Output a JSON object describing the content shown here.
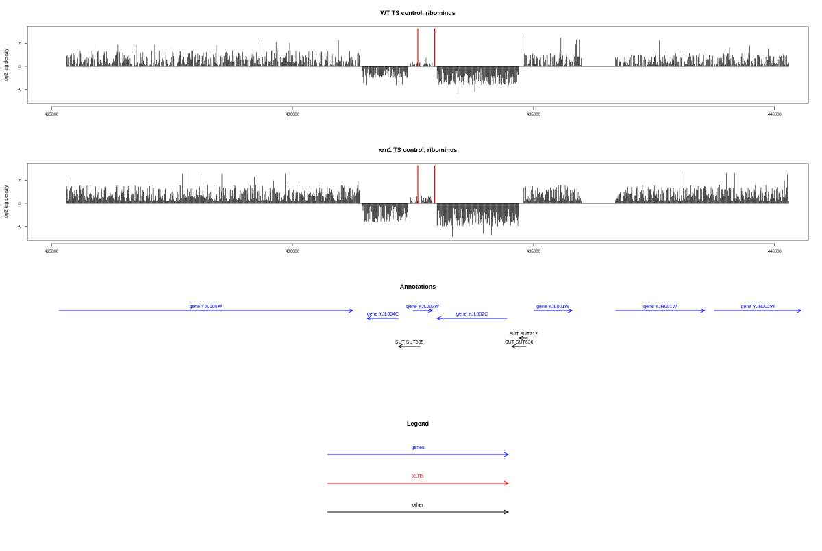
{
  "chart_data": [
    {
      "type": "bar",
      "title": "WT TS control, ribominus",
      "xlabel": "",
      "ylabel": "log2 tag density",
      "xlim": [
        424500,
        440700
      ],
      "ylim": [
        -8,
        8.6
      ],
      "x_ticks": [
        "425000",
        "430000",
        "435000",
        "440000"
      ],
      "y_ticks": [
        "5",
        "0",
        "-5"
      ],
      "grid": false,
      "density_segments": [
        {
          "start": 425300,
          "end": 431400,
          "min": 0,
          "max": 3.5,
          "peak": 6.0
        },
        {
          "start": 431450,
          "end": 432400,
          "min": -2.5,
          "max": 0,
          "peak": -4.2
        },
        {
          "start": 432450,
          "end": 432900,
          "min": 0,
          "max": 1.2,
          "peak": 2.5
        },
        {
          "start": 433000,
          "end": 434700,
          "min": -4,
          "max": -0.5,
          "peak": -6.5
        },
        {
          "start": 434800,
          "end": 436000,
          "min": 0,
          "max": 3.0,
          "peak": 6.8
        },
        {
          "start": 436700,
          "end": 440300,
          "min": 0,
          "max": 3.0,
          "peak": 5.8
        }
      ],
      "markers": [
        {
          "x": 432600,
          "color": "#ff0000",
          "y": 8.2
        },
        {
          "x": 432950,
          "color": "#ff0000",
          "y": 8.2
        }
      ]
    },
    {
      "type": "bar",
      "title": "xrn1 TS control, ribominus",
      "xlabel": "",
      "ylabel": "log2 tag density",
      "xlim": [
        424500,
        440700
      ],
      "ylim": [
        -8,
        8.6
      ],
      "x_ticks": [
        "425000",
        "430000",
        "435000",
        "440000"
      ],
      "y_ticks": [
        "5",
        "0",
        "-5"
      ],
      "grid": false,
      "density_segments": [
        {
          "start": 425300,
          "end": 431400,
          "min": 0.5,
          "max": 4.0,
          "peak": 7.6
        },
        {
          "start": 431450,
          "end": 432400,
          "min": -4,
          "max": -0.5,
          "peak": -5.5
        },
        {
          "start": 432450,
          "end": 432900,
          "min": 0,
          "max": 1.5,
          "peak": 2.5
        },
        {
          "start": 433000,
          "end": 434700,
          "min": -5,
          "max": -1,
          "peak": -7.5
        },
        {
          "start": 434800,
          "end": 436000,
          "min": 0.5,
          "max": 4.0,
          "peak": 8.3
        },
        {
          "start": 436700,
          "end": 440300,
          "min": 0.5,
          "max": 4.0,
          "peak": 7.5
        }
      ],
      "markers": [
        {
          "x": 432600,
          "color": "#ff0000",
          "y": 8.2
        },
        {
          "x": 432950,
          "color": "#ff0000",
          "y": 8.2
        }
      ]
    }
  ],
  "annotations": {
    "title": "Annotations",
    "xlim": [
      424500,
      440700
    ],
    "features": [
      {
        "label": "gene YJL005W",
        "start": 425150,
        "end": 431250,
        "strand": "+",
        "type": "gene",
        "row": 0
      },
      {
        "label": "gene YJL004C",
        "start": 431550,
        "end": 432200,
        "strand": "-",
        "type": "gene",
        "row": 1
      },
      {
        "label": "gene YJL003W",
        "start": 432500,
        "end": 432900,
        "strand": "+",
        "type": "gene",
        "row": 0
      },
      {
        "label": "gene YJL002C",
        "start": 433000,
        "end": 434450,
        "strand": "-",
        "type": "gene",
        "row": 1
      },
      {
        "label": "gene YJL001W",
        "start": 435000,
        "end": 435800,
        "strand": "+",
        "type": "gene",
        "row": 0
      },
      {
        "label": "gene YJR001W",
        "start": 436700,
        "end": 438550,
        "strand": "+",
        "type": "gene",
        "row": 0
      },
      {
        "label": "gene YJR002W",
        "start": 438750,
        "end": 440550,
        "strand": "+",
        "type": "gene",
        "row": 0
      },
      {
        "label": "SUT SUT212",
        "start": 434700,
        "end": 434880,
        "strand": "-",
        "type": "other",
        "row": 3
      },
      {
        "label": "SUT SUT635",
        "start": 432200,
        "end": 432650,
        "strand": "-",
        "type": "other",
        "row": 4
      },
      {
        "label": "SUT SUT636",
        "start": 434550,
        "end": 434850,
        "strand": "-",
        "type": "other",
        "row": 4
      }
    ]
  },
  "legend": {
    "title": "Legend",
    "items": [
      {
        "label": "genes",
        "color": "#0000ff"
      },
      {
        "label": "XUTs",
        "color": "#ff0000"
      },
      {
        "label": "other",
        "color": "#000000"
      }
    ]
  }
}
